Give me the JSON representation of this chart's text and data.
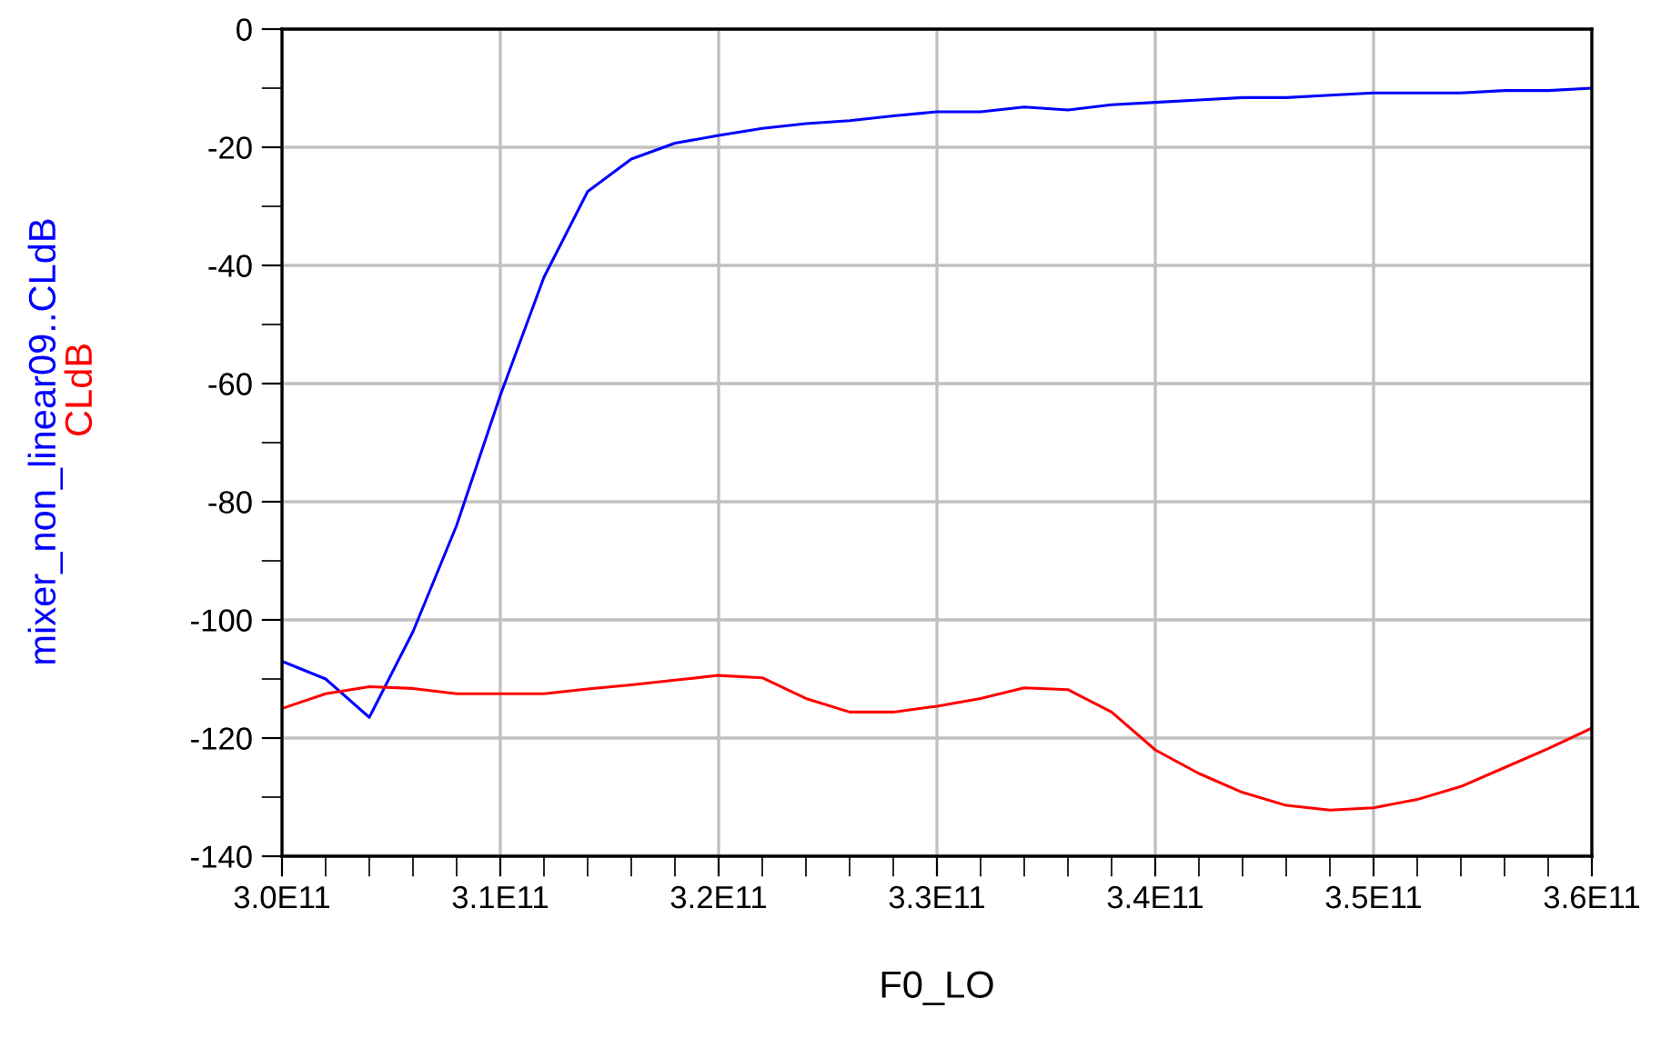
{
  "chart_data": {
    "type": "line",
    "xlabel": "F0_LO",
    "x": [
      300000000000.0,
      302000000000.0,
      304000000000.0,
      306000000000.0,
      308000000000.0,
      310000000000.0,
      312000000000.0,
      314000000000.0,
      316000000000.0,
      318000000000.0,
      320000000000.0,
      322000000000.0,
      324000000000.0,
      326000000000.0,
      328000000000.0,
      330000000000.0,
      332000000000.0,
      334000000000.0,
      336000000000.0,
      338000000000.0,
      340000000000.0,
      342000000000.0,
      344000000000.0,
      346000000000.0,
      348000000000.0,
      350000000000.0,
      352000000000.0,
      354000000000.0,
      356000000000.0,
      358000000000.0,
      360000000000.0
    ],
    "series": [
      {
        "name": "mixer_non_linear09..CLdB",
        "color": "#0000ff",
        "values": [
          -107,
          -110,
          -116.5,
          -102,
          -84,
          -62,
          -42,
          -27.5,
          -22,
          -19.3,
          -18,
          -16.8,
          -16,
          -15.5,
          -14.7,
          -14,
          -14,
          -13.2,
          -13.7,
          -12.8,
          -12.4,
          -12,
          -11.6,
          -11.6,
          -11.2,
          -10.8,
          -10.8,
          -10.8,
          -10.4,
          -10.4,
          -10
        ]
      },
      {
        "name": "CLdB",
        "color": "#ff0000",
        "values": [
          -115,
          -112.5,
          -111.3,
          -111.6,
          -112.5,
          -112.5,
          -112.5,
          -111.7,
          -111,
          -110.2,
          -109.4,
          -109.8,
          -113.3,
          -115.6,
          -115.6,
          -114.6,
          -113.3,
          -111.5,
          -111.8,
          -115.6,
          -122,
          -126,
          -129.2,
          -131.4,
          -132.2,
          -131.8,
          -130.4,
          -128.2,
          -125,
          -121.8,
          -118.3
        ]
      }
    ],
    "xlim": [
      300000000000.0,
      360000000000.0
    ],
    "xticks": [
      {
        "value": 300000000000.0,
        "label": "3.0E11"
      },
      {
        "value": 302000000000.0,
        "label": null
      },
      {
        "value": 304000000000.0,
        "label": null
      },
      {
        "value": 306000000000.0,
        "label": null
      },
      {
        "value": 308000000000.0,
        "label": null
      },
      {
        "value": 310000000000.0,
        "label": "3.1E11"
      },
      {
        "value": 312000000000.0,
        "label": null
      },
      {
        "value": 314000000000.0,
        "label": null
      },
      {
        "value": 316000000000.0,
        "label": null
      },
      {
        "value": 318000000000.0,
        "label": null
      },
      {
        "value": 320000000000.0,
        "label": "3.2E11"
      },
      {
        "value": 322000000000.0,
        "label": null
      },
      {
        "value": 324000000000.0,
        "label": null
      },
      {
        "value": 326000000000.0,
        "label": null
      },
      {
        "value": 328000000000.0,
        "label": null
      },
      {
        "value": 330000000000.0,
        "label": "3.3E11"
      },
      {
        "value": 332000000000.0,
        "label": null
      },
      {
        "value": 334000000000.0,
        "label": null
      },
      {
        "value": 336000000000.0,
        "label": null
      },
      {
        "value": 338000000000.0,
        "label": null
      },
      {
        "value": 340000000000.0,
        "label": "3.4E11"
      },
      {
        "value": 342000000000.0,
        "label": null
      },
      {
        "value": 344000000000.0,
        "label": null
      },
      {
        "value": 346000000000.0,
        "label": null
      },
      {
        "value": 348000000000.0,
        "label": null
      },
      {
        "value": 350000000000.0,
        "label": "3.5E11"
      },
      {
        "value": 352000000000.0,
        "label": null
      },
      {
        "value": 354000000000.0,
        "label": null
      },
      {
        "value": 356000000000.0,
        "label": null
      },
      {
        "value": 358000000000.0,
        "label": null
      },
      {
        "value": 360000000000.0,
        "label": "3.6E11"
      }
    ],
    "ylim": [
      -140,
      0
    ],
    "yticks": [
      -140,
      {
        "value": -130,
        "label": null
      },
      -120,
      {
        "value": -110,
        "label": null
      },
      -100,
      {
        "value": -90,
        "label": null
      },
      -80,
      {
        "value": -70,
        "label": null
      },
      -60,
      {
        "value": -50,
        "label": null
      },
      -40,
      {
        "value": -30,
        "label": null
      },
      -20,
      {
        "value": -10,
        "label": null
      },
      0
    ],
    "grid": true,
    "legend": false,
    "marker": "none",
    "line_style": "solid"
  }
}
